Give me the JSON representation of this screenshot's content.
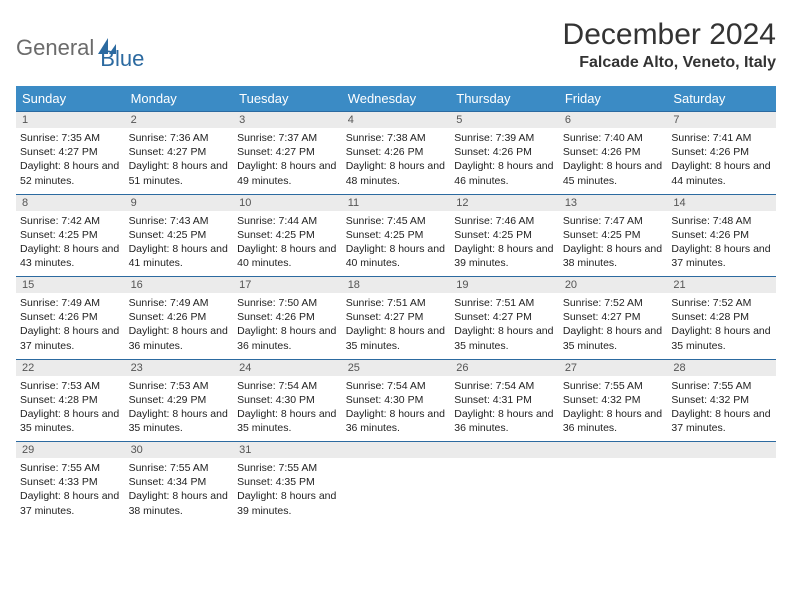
{
  "logo": {
    "text1": "General",
    "text2": "Blue"
  },
  "title": "December 2024",
  "location": "Falcade Alto, Veneto, Italy",
  "colors": {
    "header_bg": "#3b8bc5",
    "header_text": "#ffffff",
    "border": "#2c6aa0",
    "num_bg": "#ebebeb",
    "logo_gray": "#6b6b6b",
    "logo_blue": "#2c6aa0"
  },
  "day_names": [
    "Sunday",
    "Monday",
    "Tuesday",
    "Wednesday",
    "Thursday",
    "Friday",
    "Saturday"
  ],
  "weeks": [
    [
      {
        "n": "1",
        "sr": "7:35 AM",
        "ss": "4:27 PM",
        "dl": "8 hours and 52 minutes."
      },
      {
        "n": "2",
        "sr": "7:36 AM",
        "ss": "4:27 PM",
        "dl": "8 hours and 51 minutes."
      },
      {
        "n": "3",
        "sr": "7:37 AM",
        "ss": "4:27 PM",
        "dl": "8 hours and 49 minutes."
      },
      {
        "n": "4",
        "sr": "7:38 AM",
        "ss": "4:26 PM",
        "dl": "8 hours and 48 minutes."
      },
      {
        "n": "5",
        "sr": "7:39 AM",
        "ss": "4:26 PM",
        "dl": "8 hours and 46 minutes."
      },
      {
        "n": "6",
        "sr": "7:40 AM",
        "ss": "4:26 PM",
        "dl": "8 hours and 45 minutes."
      },
      {
        "n": "7",
        "sr": "7:41 AM",
        "ss": "4:26 PM",
        "dl": "8 hours and 44 minutes."
      }
    ],
    [
      {
        "n": "8",
        "sr": "7:42 AM",
        "ss": "4:25 PM",
        "dl": "8 hours and 43 minutes."
      },
      {
        "n": "9",
        "sr": "7:43 AM",
        "ss": "4:25 PM",
        "dl": "8 hours and 41 minutes."
      },
      {
        "n": "10",
        "sr": "7:44 AM",
        "ss": "4:25 PM",
        "dl": "8 hours and 40 minutes."
      },
      {
        "n": "11",
        "sr": "7:45 AM",
        "ss": "4:25 PM",
        "dl": "8 hours and 40 minutes."
      },
      {
        "n": "12",
        "sr": "7:46 AM",
        "ss": "4:25 PM",
        "dl": "8 hours and 39 minutes."
      },
      {
        "n": "13",
        "sr": "7:47 AM",
        "ss": "4:25 PM",
        "dl": "8 hours and 38 minutes."
      },
      {
        "n": "14",
        "sr": "7:48 AM",
        "ss": "4:26 PM",
        "dl": "8 hours and 37 minutes."
      }
    ],
    [
      {
        "n": "15",
        "sr": "7:49 AM",
        "ss": "4:26 PM",
        "dl": "8 hours and 37 minutes."
      },
      {
        "n": "16",
        "sr": "7:49 AM",
        "ss": "4:26 PM",
        "dl": "8 hours and 36 minutes."
      },
      {
        "n": "17",
        "sr": "7:50 AM",
        "ss": "4:26 PM",
        "dl": "8 hours and 36 minutes."
      },
      {
        "n": "18",
        "sr": "7:51 AM",
        "ss": "4:27 PM",
        "dl": "8 hours and 35 minutes."
      },
      {
        "n": "19",
        "sr": "7:51 AM",
        "ss": "4:27 PM",
        "dl": "8 hours and 35 minutes."
      },
      {
        "n": "20",
        "sr": "7:52 AM",
        "ss": "4:27 PM",
        "dl": "8 hours and 35 minutes."
      },
      {
        "n": "21",
        "sr": "7:52 AM",
        "ss": "4:28 PM",
        "dl": "8 hours and 35 minutes."
      }
    ],
    [
      {
        "n": "22",
        "sr": "7:53 AM",
        "ss": "4:28 PM",
        "dl": "8 hours and 35 minutes."
      },
      {
        "n": "23",
        "sr": "7:53 AM",
        "ss": "4:29 PM",
        "dl": "8 hours and 35 minutes."
      },
      {
        "n": "24",
        "sr": "7:54 AM",
        "ss": "4:30 PM",
        "dl": "8 hours and 35 minutes."
      },
      {
        "n": "25",
        "sr": "7:54 AM",
        "ss": "4:30 PM",
        "dl": "8 hours and 36 minutes."
      },
      {
        "n": "26",
        "sr": "7:54 AM",
        "ss": "4:31 PM",
        "dl": "8 hours and 36 minutes."
      },
      {
        "n": "27",
        "sr": "7:55 AM",
        "ss": "4:32 PM",
        "dl": "8 hours and 36 minutes."
      },
      {
        "n": "28",
        "sr": "7:55 AM",
        "ss": "4:32 PM",
        "dl": "8 hours and 37 minutes."
      }
    ],
    [
      {
        "n": "29",
        "sr": "7:55 AM",
        "ss": "4:33 PM",
        "dl": "8 hours and 37 minutes."
      },
      {
        "n": "30",
        "sr": "7:55 AM",
        "ss": "4:34 PM",
        "dl": "8 hours and 38 minutes."
      },
      {
        "n": "31",
        "sr": "7:55 AM",
        "ss": "4:35 PM",
        "dl": "8 hours and 39 minutes."
      },
      null,
      null,
      null,
      null
    ]
  ],
  "labels": {
    "sunrise": "Sunrise:",
    "sunset": "Sunset:",
    "daylight": "Daylight:"
  }
}
